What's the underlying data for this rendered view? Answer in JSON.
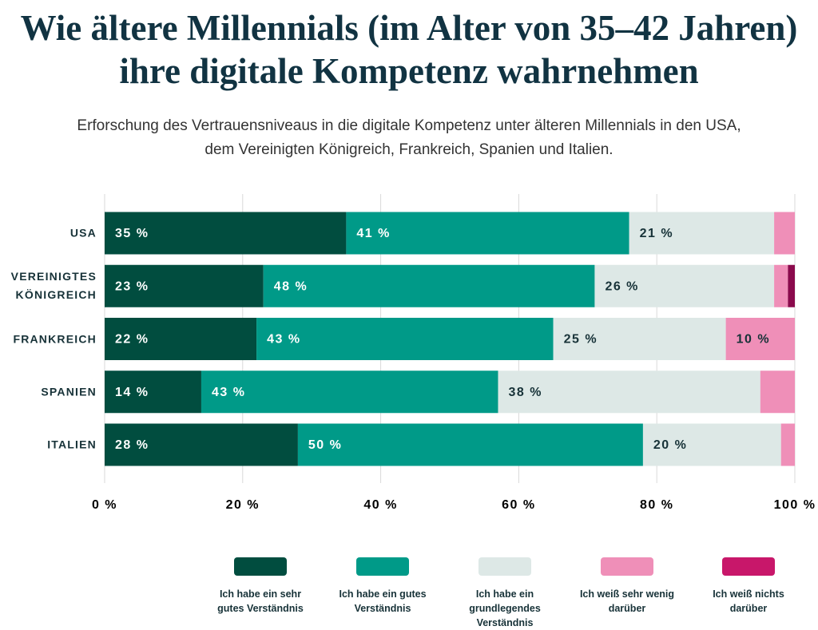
{
  "chart_data": {
    "type": "stacked-bar-horizontal",
    "title": "Wie ältere Millennials (im Alter von 35–42 Jahren) ihre digitale Kompetenz wahrnehmen",
    "subtitle": "Erforschung des Vertrauensniveaus in die digitale Kompetenz unter älteren Millennials in den USA, dem Vereinigten Königreich, Frankreich, Spanien und Italien.",
    "categories": [
      "USA",
      "VEREINIGTES KÖNIGREICH",
      "FRANKREICH",
      "SPANIEN",
      "ITALIEN"
    ],
    "series": [
      {
        "name": "Ich habe ein sehr gutes Verständnis",
        "color": "#014d3f",
        "label_color": "#ffffff",
        "values": [
          35,
          23,
          22,
          14,
          28
        ],
        "value_labels": [
          "35 %",
          "23 %",
          "22 %",
          "14 %",
          "28 %"
        ]
      },
      {
        "name": "Ich habe ein gutes Verständnis",
        "color": "#009a88",
        "label_color": "#ffffff",
        "values": [
          41,
          48,
          43,
          43,
          50
        ],
        "value_labels": [
          "41 %",
          "48 %",
          "43 %",
          "43 %",
          "50 %"
        ]
      },
      {
        "name": "Ich habe ein grundlegendes Verständnis",
        "color": "#dde8e6",
        "label_color": "#173238",
        "values": [
          21,
          26,
          25,
          38,
          20
        ],
        "value_labels": [
          "21 %",
          "26 %",
          "25 %",
          "38 %",
          "20 %"
        ]
      },
      {
        "name": "Ich weiß sehr wenig darüber",
        "color": "#ef8fb8",
        "label_color": "#173238",
        "values": [
          3,
          2,
          10,
          5,
          2
        ],
        "value_labels": [
          null,
          null,
          "10 %",
          null,
          null
        ]
      },
      {
        "name": "Ich weiß nichts darüber",
        "color": "#c8176a",
        "bar_color": "#8a0a4c",
        "label_color": "#ffffff",
        "values": [
          0,
          1,
          0,
          0,
          0
        ],
        "value_labels": [
          null,
          null,
          null,
          null,
          null
        ]
      }
    ],
    "xlim": [
      0,
      100
    ],
    "xticks": [
      {
        "value": 0,
        "label": "0 %"
      },
      {
        "value": 20,
        "label": "20 %"
      },
      {
        "value": 40,
        "label": "40 %"
      },
      {
        "value": 60,
        "label": "60 %"
      },
      {
        "value": 80,
        "label": "80 %"
      },
      {
        "value": 100,
        "label": "100 %"
      }
    ],
    "grid": true,
    "legend": "bottom"
  }
}
